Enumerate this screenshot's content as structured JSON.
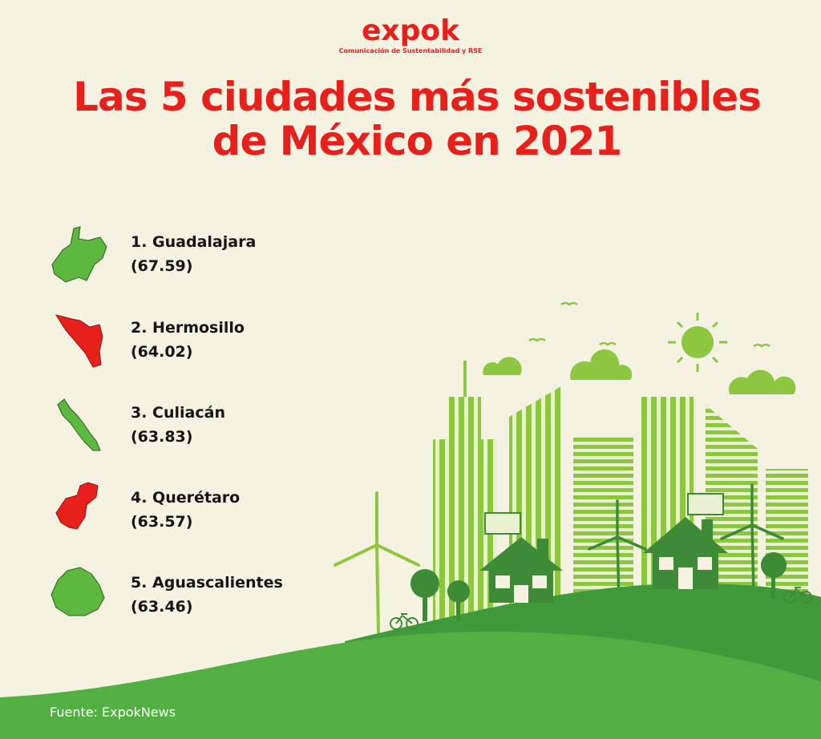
{
  "header": {
    "logo": "expok",
    "tagline": "Comunicación de Sustentabilidad y RSE"
  },
  "title": [
    "Las 5 ciudades más sostenibles",
    "de México en 2021"
  ],
  "items": [
    {
      "name": "1. Guadalajara",
      "score": "(67.59)"
    },
    {
      "name": "2. Hermosillo",
      "score": "(64.02)"
    },
    {
      "name": "3. Culiacán",
      "score": "(63.83)"
    },
    {
      "name": "4. Querétaro",
      "score": "(63.57)"
    },
    {
      "name": "5. Aguascalientes",
      "score": "(63.46)"
    }
  ],
  "footer": {
    "source": "Fuente: ExpokNews"
  }
}
